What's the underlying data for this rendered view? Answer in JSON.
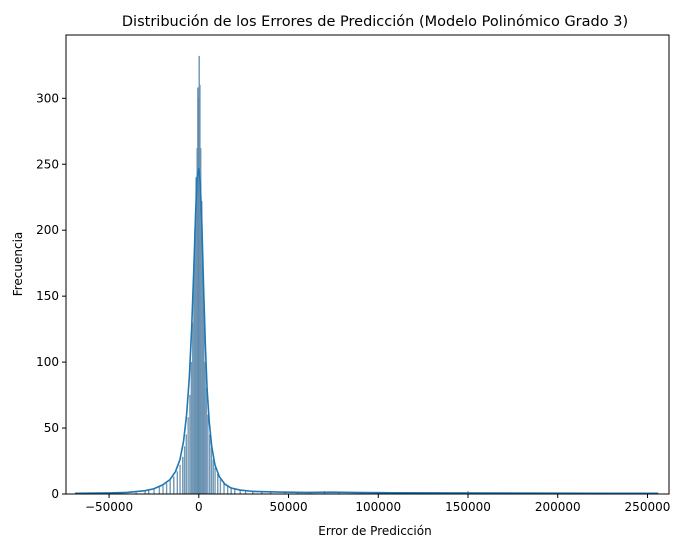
{
  "chart_data": {
    "type": "histogram",
    "title": "Distribución de los Errores de Predicción (Modelo Polinómico Grado 3)",
    "xlabel": "Error de Predicción",
    "ylabel": "Frecuencia",
    "xlim": [
      -74000,
      262000
    ],
    "ylim": [
      0,
      348
    ],
    "x_ticks": [
      -50000,
      0,
      50000,
      100000,
      150000,
      200000,
      250000
    ],
    "x_tick_labels": [
      "−50000",
      "0",
      "50000",
      "100000",
      "150000",
      "200000",
      "250000"
    ],
    "y_ticks": [
      0,
      50,
      100,
      150,
      200,
      250,
      300
    ],
    "y_tick_labels": [
      "0",
      "50",
      "100",
      "150",
      "200",
      "250",
      "300"
    ],
    "bar_color": "#6b94b3",
    "bar_edge_color": "#5b86a8",
    "kde_color": "#1f77b4",
    "grid": false,
    "bins": [
      {
        "x": -35000,
        "count": 1
      },
      {
        "x": -30000,
        "count": 2
      },
      {
        "x": -28000,
        "count": 3
      },
      {
        "x": -25000,
        "count": 4
      },
      {
        "x": -22000,
        "count": 5
      },
      {
        "x": -20000,
        "count": 6
      },
      {
        "x": -18000,
        "count": 8
      },
      {
        "x": -16000,
        "count": 10
      },
      {
        "x": -14000,
        "count": 13
      },
      {
        "x": -12000,
        "count": 17
      },
      {
        "x": -10500,
        "count": 22
      },
      {
        "x": -9000,
        "count": 28
      },
      {
        "x": -8000,
        "count": 36
      },
      {
        "x": -7000,
        "count": 45
      },
      {
        "x": -6000,
        "count": 58
      },
      {
        "x": -5000,
        "count": 75
      },
      {
        "x": -4200,
        "count": 100
      },
      {
        "x": -3500,
        "count": 130
      },
      {
        "x": -2800,
        "count": 165
      },
      {
        "x": -2200,
        "count": 200
      },
      {
        "x": -1600,
        "count": 240
      },
      {
        "x": -1000,
        "count": 262
      },
      {
        "x": -600,
        "count": 308
      },
      {
        "x": -200,
        "count": 300
      },
      {
        "x": 200,
        "count": 332
      },
      {
        "x": 600,
        "count": 310
      },
      {
        "x": 1000,
        "count": 262
      },
      {
        "x": 1600,
        "count": 222
      },
      {
        "x": 2200,
        "count": 175
      },
      {
        "x": 2800,
        "count": 140
      },
      {
        "x": 3500,
        "count": 100
      },
      {
        "x": 4200,
        "count": 80
      },
      {
        "x": 5000,
        "count": 60
      },
      {
        "x": 6000,
        "count": 45
      },
      {
        "x": 7000,
        "count": 35
      },
      {
        "x": 8000,
        "count": 26
      },
      {
        "x": 9000,
        "count": 20
      },
      {
        "x": 10500,
        "count": 15
      },
      {
        "x": 12000,
        "count": 11
      },
      {
        "x": 14000,
        "count": 8
      },
      {
        "x": 16000,
        "count": 6
      },
      {
        "x": 18000,
        "count": 5
      },
      {
        "x": 20000,
        "count": 4
      },
      {
        "x": 23000,
        "count": 3
      },
      {
        "x": 26000,
        "count": 2
      },
      {
        "x": 30000,
        "count": 2
      },
      {
        "x": 35000,
        "count": 1
      },
      {
        "x": 40000,
        "count": 1
      },
      {
        "x": 48000,
        "count": 1
      },
      {
        "x": 55000,
        "count": 1
      },
      {
        "x": 62000,
        "count": 1
      },
      {
        "x": 70000,
        "count": 2
      },
      {
        "x": 78000,
        "count": 1
      },
      {
        "x": 90000,
        "count": 1
      },
      {
        "x": 105000,
        "count": 1
      },
      {
        "x": 120000,
        "count": 1
      },
      {
        "x": 150000,
        "count": 2
      },
      {
        "x": 170000,
        "count": 1
      },
      {
        "x": 200000,
        "count": 1
      },
      {
        "x": 230000,
        "count": 1
      },
      {
        "x": 255000,
        "count": 1
      },
      {
        "x": -45000,
        "count": 1
      },
      {
        "x": -55000,
        "count": 1
      },
      {
        "x": -68000,
        "count": 1
      }
    ],
    "kde": [
      [
        -69000,
        0.5
      ],
      [
        -50000,
        0.8
      ],
      [
        -40000,
        1.2
      ],
      [
        -30000,
        2.5
      ],
      [
        -25000,
        4
      ],
      [
        -20000,
        7
      ],
      [
        -16000,
        11
      ],
      [
        -13000,
        17
      ],
      [
        -10500,
        26
      ],
      [
        -8500,
        40
      ],
      [
        -6800,
        60
      ],
      [
        -5300,
        88
      ],
      [
        -4000,
        125
      ],
      [
        -2800,
        170
      ],
      [
        -1800,
        212
      ],
      [
        -900,
        240
      ],
      [
        0,
        247
      ],
      [
        800,
        236
      ],
      [
        1700,
        205
      ],
      [
        2600,
        160
      ],
      [
        3600,
        115
      ],
      [
        4600,
        80
      ],
      [
        5800,
        55
      ],
      [
        7200,
        36
      ],
      [
        9000,
        22
      ],
      [
        11500,
        13
      ],
      [
        14500,
        7.5
      ],
      [
        18000,
        4.5
      ],
      [
        23000,
        3
      ],
      [
        30000,
        2
      ],
      [
        45000,
        1.5
      ],
      [
        60000,
        1.2
      ],
      [
        75000,
        1.4
      ],
      [
        90000,
        1.1
      ],
      [
        110000,
        0.9
      ],
      [
        140000,
        0.8
      ],
      [
        170000,
        0.7
      ],
      [
        200000,
        0.6
      ],
      [
        230000,
        0.5
      ],
      [
        256000,
        0.5
      ]
    ]
  }
}
